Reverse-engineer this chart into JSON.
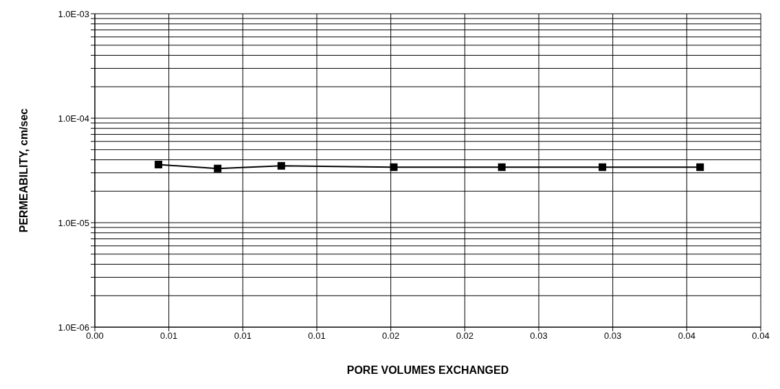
{
  "chart_data": {
    "type": "line",
    "xlabel": "PORE VOLUMES EXCHANGED",
    "ylabel": "PERMEABILITY, cm/sec",
    "x": [
      0.0043,
      0.0083,
      0.0126,
      0.0202,
      0.0275,
      0.0343,
      0.0409
    ],
    "series": [
      {
        "color": "#000000",
        "values": [
          3.6e-05,
          3.3e-05,
          3.5e-05,
          3.4e-05,
          3.4e-05,
          3.4e-05,
          3.4e-05
        ]
      }
    ],
    "marker": "square",
    "log": "y",
    "grid": true,
    "xlim": [
      0,
      0.045
    ],
    "xticks": [
      {
        "value": 0,
        "label": "0.00"
      },
      {
        "value": 0.005,
        "label": "0.01"
      },
      {
        "value": 0.01,
        "label": "0.01"
      },
      {
        "value": 0.015,
        "label": "0.01"
      },
      {
        "value": 0.02,
        "label": "0.02"
      },
      {
        "value": 0.025,
        "label": "0.02"
      },
      {
        "value": 0.03,
        "label": "0.03"
      },
      {
        "value": 0.035,
        "label": "0.03"
      },
      {
        "value": 0.04,
        "label": "0.04"
      },
      {
        "value": 0.045,
        "label": "0.04"
      }
    ],
    "ylim": [
      1e-06,
      0.001
    ],
    "yticks": [
      {
        "value": 1e-06,
        "label": "1.0E-06"
      },
      {
        "value": 2e-06,
        "label": null
      },
      {
        "value": 3e-06,
        "label": null
      },
      {
        "value": 4e-06,
        "label": null
      },
      {
        "value": 5e-06,
        "label": null
      },
      {
        "value": 6e-06,
        "label": null
      },
      {
        "value": 7e-06,
        "label": null
      },
      {
        "value": 8e-06,
        "label": null
      },
      {
        "value": 9e-06,
        "label": null
      },
      {
        "value": 1e-05,
        "label": "1.0E-05"
      },
      {
        "value": 2e-05,
        "label": null
      },
      {
        "value": 3e-05,
        "label": null
      },
      {
        "value": 4e-05,
        "label": null
      },
      {
        "value": 5e-05,
        "label": null
      },
      {
        "value": 6e-05,
        "label": null
      },
      {
        "value": 7e-05,
        "label": null
      },
      {
        "value": 8e-05,
        "label": null
      },
      {
        "value": 9e-05,
        "label": null
      },
      {
        "value": 0.0001,
        "label": "1.0E-04"
      },
      {
        "value": 0.0002,
        "label": null
      },
      {
        "value": 0.0003,
        "label": null
      },
      {
        "value": 0.0004,
        "label": null
      },
      {
        "value": 0.0005,
        "label": null
      },
      {
        "value": 0.0006,
        "label": null
      },
      {
        "value": 0.0007,
        "label": null
      },
      {
        "value": 0.0008,
        "label": null
      },
      {
        "value": 0.0009,
        "label": null
      },
      {
        "value": 0.001,
        "label": "1.0E-03"
      }
    ]
  }
}
